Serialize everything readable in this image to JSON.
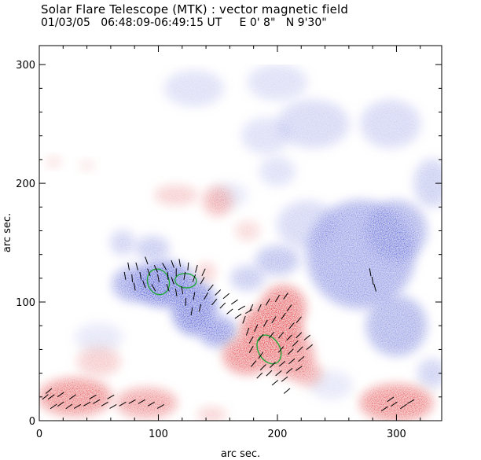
{
  "header": {
    "title": "Solar Flare Telescope (MTK) : vector magnetic field",
    "subtitle": "01/03/05   06:48:09-06:49:15 UT     E 0' 8\"   N 9'30\""
  },
  "chart_data": {
    "type": "heatmap",
    "title": "Solar Flare Telescope (MTK) : vector magnetic field",
    "xlabel": "arc sec.",
    "ylabel": "arc sec.",
    "xlim": [
      0,
      338
    ],
    "ylim": [
      0,
      316
    ],
    "xticks": [
      "0",
      "100",
      "200",
      "300"
    ],
    "yticks": [
      "0",
      "100",
      "200",
      "300"
    ],
    "colors": {
      "negative": "#3a4fd8",
      "positive": "#e8383f",
      "contour": "#22a83a",
      "vectors": "#000000"
    },
    "blobs_negative": [
      {
        "x": 105,
        "y": 115,
        "rx": 25,
        "ry": 18,
        "strength": 0.9
      },
      {
        "x": 130,
        "y": 95,
        "rx": 18,
        "ry": 22,
        "strength": 0.85
      },
      {
        "x": 150,
        "y": 75,
        "rx": 15,
        "ry": 12,
        "strength": 0.7
      },
      {
        "x": 80,
        "y": 115,
        "rx": 18,
        "ry": 14,
        "strength": 0.6
      },
      {
        "x": 95,
        "y": 145,
        "rx": 14,
        "ry": 10,
        "strength": 0.35
      },
      {
        "x": 70,
        "y": 150,
        "rx": 10,
        "ry": 10,
        "strength": 0.3
      },
      {
        "x": 200,
        "y": 135,
        "rx": 18,
        "ry": 12,
        "strength": 0.4
      },
      {
        "x": 175,
        "y": 120,
        "rx": 14,
        "ry": 10,
        "strength": 0.35
      },
      {
        "x": 270,
        "y": 140,
        "rx": 45,
        "ry": 45,
        "strength": 0.55
      },
      {
        "x": 300,
        "y": 80,
        "rx": 25,
        "ry": 25,
        "strength": 0.5
      },
      {
        "x": 300,
        "y": 160,
        "rx": 25,
        "ry": 25,
        "strength": 0.5
      },
      {
        "x": 230,
        "y": 250,
        "rx": 30,
        "ry": 20,
        "strength": 0.25
      },
      {
        "x": 190,
        "y": 240,
        "rx": 20,
        "ry": 15,
        "strength": 0.2
      },
      {
        "x": 200,
        "y": 210,
        "rx": 15,
        "ry": 12,
        "strength": 0.2
      },
      {
        "x": 130,
        "y": 280,
        "rx": 25,
        "ry": 15,
        "strength": 0.2
      },
      {
        "x": 200,
        "y": 285,
        "rx": 25,
        "ry": 15,
        "strength": 0.2
      },
      {
        "x": 295,
        "y": 250,
        "rx": 25,
        "ry": 20,
        "strength": 0.25
      },
      {
        "x": 330,
        "y": 200,
        "rx": 15,
        "ry": 20,
        "strength": 0.3
      },
      {
        "x": 225,
        "y": 165,
        "rx": 25,
        "ry": 20,
        "strength": 0.25
      },
      {
        "x": 160,
        "y": 190,
        "rx": 15,
        "ry": 10,
        "strength": 0.15
      },
      {
        "x": 330,
        "y": 40,
        "rx": 12,
        "ry": 12,
        "strength": 0.3
      },
      {
        "x": 50,
        "y": 70,
        "rx": 20,
        "ry": 12,
        "strength": 0.15
      },
      {
        "x": 245,
        "y": 30,
        "rx": 18,
        "ry": 12,
        "strength": 0.15
      }
    ],
    "blobs_positive": [
      {
        "x": 195,
        "y": 75,
        "rx": 25,
        "ry": 22,
        "strength": 0.95
      },
      {
        "x": 175,
        "y": 55,
        "rx": 20,
        "ry": 15,
        "strength": 0.8
      },
      {
        "x": 205,
        "y": 95,
        "rx": 18,
        "ry": 18,
        "strength": 0.85
      },
      {
        "x": 210,
        "y": 55,
        "rx": 20,
        "ry": 18,
        "strength": 0.7
      },
      {
        "x": 30,
        "y": 20,
        "rx": 30,
        "ry": 15,
        "strength": 0.75
      },
      {
        "x": 90,
        "y": 15,
        "rx": 25,
        "ry": 12,
        "strength": 0.6
      },
      {
        "x": 300,
        "y": 15,
        "rx": 30,
        "ry": 15,
        "strength": 0.75
      },
      {
        "x": 225,
        "y": 40,
        "rx": 12,
        "ry": 10,
        "strength": 0.5
      },
      {
        "x": 50,
        "y": 50,
        "rx": 18,
        "ry": 12,
        "strength": 0.3
      },
      {
        "x": 150,
        "y": 185,
        "rx": 12,
        "ry": 12,
        "strength": 0.45
      },
      {
        "x": 115,
        "y": 190,
        "rx": 18,
        "ry": 8,
        "strength": 0.3
      },
      {
        "x": 175,
        "y": 160,
        "rx": 10,
        "ry": 8,
        "strength": 0.25
      },
      {
        "x": 140,
        "y": 125,
        "rx": 8,
        "ry": 8,
        "strength": 0.3
      },
      {
        "x": 12,
        "y": 218,
        "rx": 6,
        "ry": 4,
        "strength": 0.25
      },
      {
        "x": 40,
        "y": 215,
        "rx": 6,
        "ry": 4,
        "strength": 0.2
      },
      {
        "x": 145,
        "y": 5,
        "rx": 12,
        "ry": 6,
        "strength": 0.3
      }
    ],
    "contours": [
      {
        "x": 100,
        "y": 117,
        "rx": 9,
        "ry": 11,
        "rot": -20
      },
      {
        "x": 123,
        "y": 118,
        "rx": 9,
        "ry": 6,
        "rot": 5
      },
      {
        "x": 193,
        "y": 60,
        "rx": 9,
        "ry": 13,
        "rot": -30
      }
    ],
    "vectors": [
      {
        "x": 72,
        "y": 122,
        "a": 100
      },
      {
        "x": 78,
        "y": 120,
        "a": 95
      },
      {
        "x": 85,
        "y": 122,
        "a": 100
      },
      {
        "x": 92,
        "y": 125,
        "a": 110
      },
      {
        "x": 98,
        "y": 128,
        "a": 115
      },
      {
        "x": 105,
        "y": 130,
        "a": 120
      },
      {
        "x": 112,
        "y": 132,
        "a": 110
      },
      {
        "x": 118,
        "y": 133,
        "a": 100
      },
      {
        "x": 125,
        "y": 130,
        "a": 85
      },
      {
        "x": 132,
        "y": 128,
        "a": 75
      },
      {
        "x": 138,
        "y": 125,
        "a": 65
      },
      {
        "x": 100,
        "y": 120,
        "a": 100
      },
      {
        "x": 108,
        "y": 122,
        "a": 95
      },
      {
        "x": 115,
        "y": 125,
        "a": 90
      },
      {
        "x": 122,
        "y": 122,
        "a": 80
      },
      {
        "x": 130,
        "y": 120,
        "a": 70
      },
      {
        "x": 137,
        "y": 118,
        "a": 60
      },
      {
        "x": 144,
        "y": 112,
        "a": 50
      },
      {
        "x": 150,
        "y": 108,
        "a": 45
      },
      {
        "x": 157,
        "y": 105,
        "a": 40
      },
      {
        "x": 164,
        "y": 100,
        "a": 35
      },
      {
        "x": 170,
        "y": 95,
        "a": 30
      },
      {
        "x": 176,
        "y": 92,
        "a": 30
      },
      {
        "x": 140,
        "y": 105,
        "a": 60
      },
      {
        "x": 147,
        "y": 100,
        "a": 50
      },
      {
        "x": 154,
        "y": 97,
        "a": 45
      },
      {
        "x": 160,
        "y": 92,
        "a": 40
      },
      {
        "x": 167,
        "y": 88,
        "a": 35
      },
      {
        "x": 130,
        "y": 105,
        "a": 80
      },
      {
        "x": 123,
        "y": 100,
        "a": 90
      },
      {
        "x": 115,
        "y": 108,
        "a": 100
      },
      {
        "x": 108,
        "y": 112,
        "a": 110
      },
      {
        "x": 135,
        "y": 95,
        "a": 75
      },
      {
        "x": 128,
        "y": 92,
        "a": 80
      },
      {
        "x": 120,
        "y": 110,
        "a": 100
      },
      {
        "x": 112,
        "y": 118,
        "a": 110
      },
      {
        "x": 96,
        "y": 112,
        "a": 120
      },
      {
        "x": 88,
        "y": 115,
        "a": 110
      },
      {
        "x": 80,
        "y": 113,
        "a": 100
      },
      {
        "x": 82,
        "y": 130,
        "a": 105
      },
      {
        "x": 90,
        "y": 135,
        "a": 110
      },
      {
        "x": 75,
        "y": 130,
        "a": 100
      },
      {
        "x": 175,
        "y": 75,
        "a": 70
      },
      {
        "x": 182,
        "y": 78,
        "a": 65
      },
      {
        "x": 190,
        "y": 82,
        "a": 60
      },
      {
        "x": 197,
        "y": 85,
        "a": 58
      },
      {
        "x": 205,
        "y": 88,
        "a": 55
      },
      {
        "x": 212,
        "y": 80,
        "a": 50
      },
      {
        "x": 185,
        "y": 95,
        "a": 65
      },
      {
        "x": 192,
        "y": 100,
        "a": 60
      },
      {
        "x": 200,
        "y": 103,
        "a": 58
      },
      {
        "x": 207,
        "y": 105,
        "a": 55
      },
      {
        "x": 178,
        "y": 68,
        "a": 60
      },
      {
        "x": 186,
        "y": 70,
        "a": 55
      },
      {
        "x": 195,
        "y": 72,
        "a": 50
      },
      {
        "x": 203,
        "y": 72,
        "a": 50
      },
      {
        "x": 210,
        "y": 70,
        "a": 45
      },
      {
        "x": 218,
        "y": 72,
        "a": 45
      },
      {
        "x": 225,
        "y": 70,
        "a": 40
      },
      {
        "x": 178,
        "y": 60,
        "a": 60
      },
      {
        "x": 186,
        "y": 55,
        "a": 55
      },
      {
        "x": 203,
        "y": 60,
        "a": 50
      },
      {
        "x": 211,
        "y": 58,
        "a": 45
      },
      {
        "x": 219,
        "y": 60,
        "a": 45
      },
      {
        "x": 227,
        "y": 62,
        "a": 40
      },
      {
        "x": 180,
        "y": 48,
        "a": 50
      },
      {
        "x": 188,
        "y": 45,
        "a": 45
      },
      {
        "x": 196,
        "y": 47,
        "a": 45
      },
      {
        "x": 204,
        "y": 48,
        "a": 40
      },
      {
        "x": 212,
        "y": 50,
        "a": 40
      },
      {
        "x": 220,
        "y": 52,
        "a": 40
      },
      {
        "x": 185,
        "y": 38,
        "a": 45
      },
      {
        "x": 193,
        "y": 40,
        "a": 45
      },
      {
        "x": 201,
        "y": 40,
        "a": 40
      },
      {
        "x": 210,
        "y": 42,
        "a": 40
      },
      {
        "x": 218,
        "y": 44,
        "a": 35
      },
      {
        "x": 198,
        "y": 32,
        "a": 40
      },
      {
        "x": 206,
        "y": 35,
        "a": 38
      },
      {
        "x": 172,
        "y": 85,
        "a": 70
      },
      {
        "x": 178,
        "y": 95,
        "a": 65
      },
      {
        "x": 210,
        "y": 95,
        "a": 55
      },
      {
        "x": 218,
        "y": 85,
        "a": 50
      },
      {
        "x": 215,
        "y": 65,
        "a": 45
      },
      {
        "x": 208,
        "y": 25,
        "a": 40
      },
      {
        "x": 5,
        "y": 20,
        "a": 40
      },
      {
        "x": 12,
        "y": 12,
        "a": 35
      },
      {
        "x": 18,
        "y": 14,
        "a": 35
      },
      {
        "x": 25,
        "y": 12,
        "a": 35
      },
      {
        "x": 32,
        "y": 12,
        "a": 30
      },
      {
        "x": 40,
        "y": 14,
        "a": 30
      },
      {
        "x": 48,
        "y": 16,
        "a": 30
      },
      {
        "x": 55,
        "y": 14,
        "a": 30
      },
      {
        "x": 62,
        "y": 12,
        "a": 30
      },
      {
        "x": 70,
        "y": 14,
        "a": 30
      },
      {
        "x": 78,
        "y": 16,
        "a": 30
      },
      {
        "x": 86,
        "y": 16,
        "a": 30
      },
      {
        "x": 94,
        "y": 14,
        "a": 30
      },
      {
        "x": 102,
        "y": 12,
        "a": 30
      },
      {
        "x": 10,
        "y": 20,
        "a": 35
      },
      {
        "x": 18,
        "y": 22,
        "a": 35
      },
      {
        "x": 28,
        "y": 20,
        "a": 35
      },
      {
        "x": 45,
        "y": 20,
        "a": 30
      },
      {
        "x": 60,
        "y": 20,
        "a": 30
      },
      {
        "x": 8,
        "y": 25,
        "a": 40
      },
      {
        "x": 290,
        "y": 10,
        "a": 35
      },
      {
        "x": 298,
        "y": 14,
        "a": 35
      },
      {
        "x": 306,
        "y": 12,
        "a": 35
      },
      {
        "x": 295,
        "y": 18,
        "a": 35
      },
      {
        "x": 312,
        "y": 16,
        "a": 30
      },
      {
        "x": 278,
        "y": 125,
        "a": 100
      },
      {
        "x": 280,
        "y": 118,
        "a": 100
      },
      {
        "x": 282,
        "y": 112,
        "a": 105
      }
    ]
  }
}
